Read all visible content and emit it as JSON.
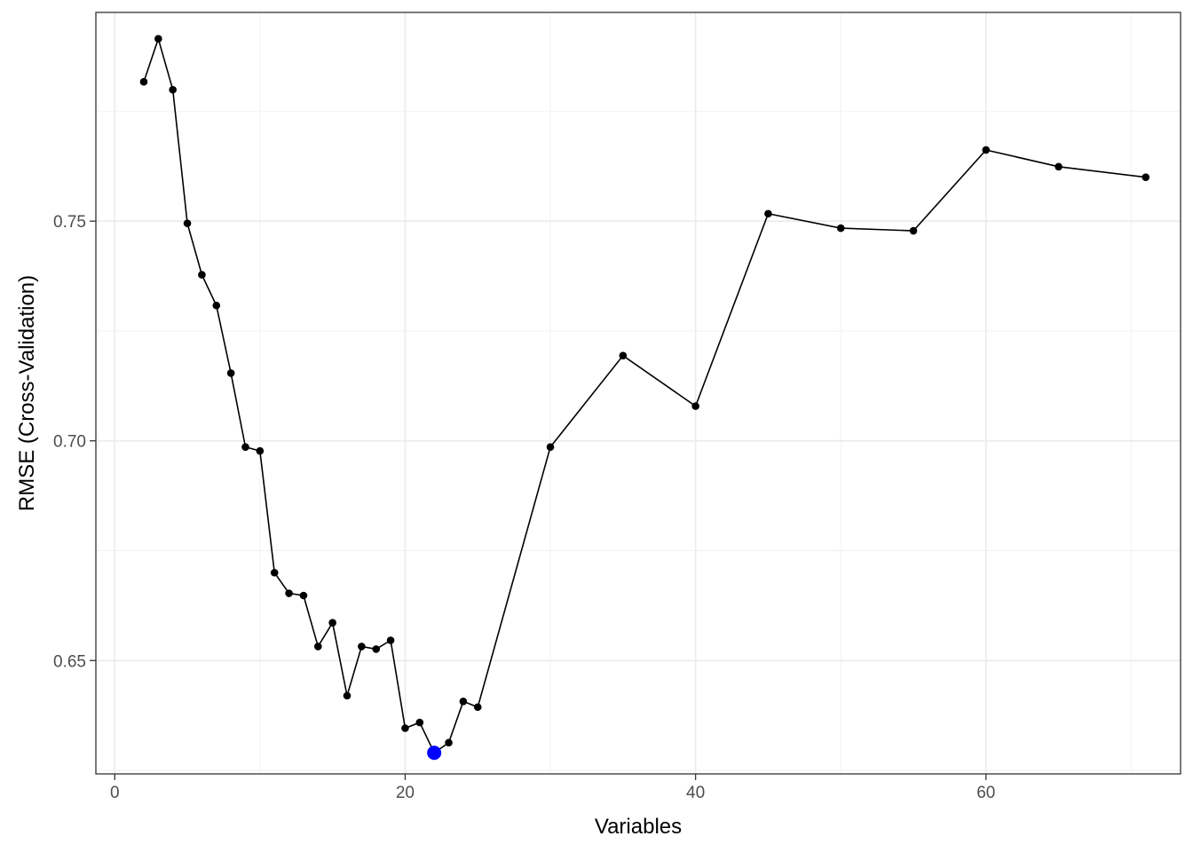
{
  "chart_data": {
    "type": "line",
    "title": "",
    "xlabel": "Variables",
    "ylabel": "RMSE (Cross-Validation)",
    "xlim": [
      -1.3,
      73.4
    ],
    "ylim": [
      0.6242,
      0.7975
    ],
    "x_ticks": [
      0,
      20,
      40,
      60
    ],
    "x_tick_labels": [
      "0",
      "20",
      "40",
      "60"
    ],
    "x_minor_ticks": [
      10,
      30,
      50,
      70
    ],
    "y_ticks": [
      0.65,
      0.7,
      0.75
    ],
    "y_tick_labels": [
      "0.65",
      "0.70",
      "0.75"
    ],
    "y_minor_ticks": [
      0.625,
      0.675,
      0.725,
      0.775
    ],
    "grid": true,
    "series": [
      {
        "color": "#000000",
        "x": [
          2,
          3,
          4,
          5,
          6,
          7,
          8,
          9,
          10,
          11,
          12,
          13,
          14,
          15,
          16,
          17,
          18,
          19,
          20,
          21,
          22,
          23,
          24,
          25,
          30,
          35,
          40,
          45,
          50,
          55,
          60,
          65,
          71
        ],
        "y": [
          0.7817,
          0.7915,
          0.7799,
          0.7495,
          0.7378,
          0.7308,
          0.7154,
          0.6986,
          0.6977,
          0.67,
          0.6653,
          0.6648,
          0.6532,
          0.6586,
          0.642,
          0.6532,
          0.6526,
          0.6546,
          0.6346,
          0.6359,
          0.629,
          0.6313,
          0.6407,
          0.6394,
          0.6986,
          0.7194,
          0.7079,
          0.7517,
          0.7484,
          0.7478,
          0.7662,
          0.7624,
          0.76
        ]
      }
    ],
    "highlight": {
      "x": 22,
      "y": 0.629,
      "color": "#0000ff"
    }
  }
}
